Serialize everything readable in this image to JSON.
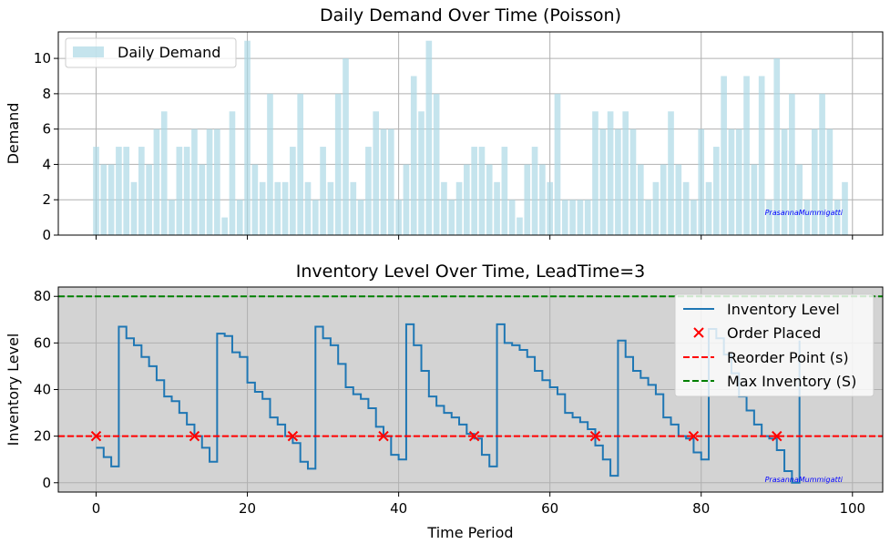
{
  "chart_data": [
    {
      "type": "bar",
      "title": "Daily Demand Over Time (Poisson)",
      "xlabel": "",
      "ylabel": "Demand",
      "xlim": [
        -5,
        104
      ],
      "ylim": [
        0,
        11.5
      ],
      "xticks": [
        0,
        20,
        40,
        60,
        80,
        100
      ],
      "yticks": [
        0,
        2,
        4,
        6,
        8,
        10
      ],
      "grid": true,
      "legend_position": "top-left",
      "watermark": "PrasannaMummigatti",
      "series": [
        {
          "name": "Daily Demand",
          "color": "#add8e6",
          "x": [
            0,
            1,
            2,
            3,
            4,
            5,
            6,
            7,
            8,
            9,
            10,
            11,
            12,
            13,
            14,
            15,
            16,
            17,
            18,
            19,
            20,
            21,
            22,
            23,
            24,
            25,
            26,
            27,
            28,
            29,
            30,
            31,
            32,
            33,
            34,
            35,
            36,
            37,
            38,
            39,
            40,
            41,
            42,
            43,
            44,
            45,
            46,
            47,
            48,
            49,
            50,
            51,
            52,
            53,
            54,
            55,
            56,
            57,
            58,
            59,
            60,
            61,
            62,
            63,
            64,
            65,
            66,
            67,
            68,
            69,
            70,
            71,
            72,
            73,
            74,
            75,
            76,
            77,
            78,
            79,
            80,
            81,
            82,
            83,
            84,
            85,
            86,
            87,
            88,
            89,
            90,
            91,
            92,
            93,
            94,
            95,
            96,
            97,
            98,
            99
          ],
          "values": [
            5,
            4,
            4,
            5,
            5,
            3,
            5,
            4,
            6,
            7,
            2,
            5,
            5,
            6,
            4,
            6,
            6,
            1,
            7,
            2,
            11,
            4,
            3,
            8,
            3,
            3,
            5,
            8,
            3,
            2,
            5,
            3,
            8,
            10,
            3,
            2,
            5,
            7,
            6,
            6,
            2,
            4,
            9,
            7,
            11,
            8,
            3,
            2,
            3,
            4,
            5,
            5,
            4,
            3,
            5,
            2,
            1,
            4,
            5,
            4,
            3,
            8,
            2,
            2,
            2,
            2,
            7,
            6,
            7,
            6,
            7,
            6,
            4,
            2,
            3,
            4,
            7,
            4,
            3,
            2,
            6,
            3,
            5,
            9,
            6,
            6,
            9,
            4,
            9,
            2,
            10,
            6,
            8,
            4,
            2,
            6,
            8,
            6,
            2,
            3
          ]
        }
      ]
    },
    {
      "type": "line",
      "title": "Inventory Level Over Time, LeadTime=3",
      "xlabel": "Time Period",
      "ylabel": "Inventory Level",
      "xlim": [
        -5,
        104
      ],
      "ylim": [
        -4,
        84
      ],
      "xticks": [
        0,
        20,
        40,
        60,
        80,
        100
      ],
      "yticks": [
        0,
        20,
        40,
        60,
        80
      ],
      "grid": true,
      "background": "#d3d3d3",
      "legend_position": "top-right",
      "watermark": "PrasannaMummigatti",
      "series": [
        {
          "name": "Inventory Level",
          "style": "steps-post",
          "color": "#1f77b4",
          "x": [
            0,
            1,
            2,
            3,
            4,
            5,
            6,
            7,
            8,
            9,
            10,
            11,
            12,
            13,
            14,
            15,
            16,
            17,
            18,
            19,
            20,
            21,
            22,
            23,
            24,
            25,
            26,
            27,
            28,
            29,
            30,
            31,
            32,
            33,
            34,
            35,
            36,
            37,
            38,
            39,
            40,
            41,
            42,
            43,
            44,
            45,
            46,
            47,
            48,
            49,
            50,
            51,
            52,
            53,
            54,
            55,
            56,
            57,
            58,
            59,
            60,
            61,
            62,
            63,
            64,
            65,
            66,
            67,
            68,
            69,
            70,
            71,
            72,
            73,
            74,
            75,
            76,
            77,
            78,
            79,
            80,
            81,
            82,
            83,
            84,
            85,
            86,
            87,
            88,
            89,
            90,
            91,
            92,
            93
          ],
          "values": [
            15,
            11,
            7,
            67,
            62,
            59,
            54,
            50,
            44,
            37,
            35,
            30,
            25,
            20,
            15,
            9,
            64,
            63,
            56,
            54,
            43,
            39,
            36,
            28,
            25,
            20,
            17,
            9,
            6,
            67,
            62,
            59,
            51,
            41,
            38,
            36,
            32,
            24,
            20,
            12,
            10,
            68,
            59,
            48,
            37,
            33,
            30,
            28,
            25,
            21,
            19,
            12,
            7,
            68,
            60,
            59,
            57,
            54,
            48,
            44,
            41,
            38,
            30,
            28,
            26,
            23,
            16,
            10,
            3,
            61,
            54,
            48,
            45,
            42,
            38,
            28,
            25,
            20,
            19,
            13,
            10,
            66,
            62,
            55,
            47,
            37,
            31,
            25,
            20,
            19,
            14,
            5,
            0,
            61
          ]
        },
        {
          "name": "Order Placed",
          "style": "markers-x",
          "color": "#ff0000",
          "x": [
            0,
            13,
            26,
            38,
            50,
            66,
            79,
            90
          ],
          "values": [
            20,
            20,
            20,
            20,
            20,
            20,
            20,
            20
          ]
        },
        {
          "name": "Reorder Point (s)",
          "style": "hline-dashed",
          "color": "#ff0000",
          "value": 20
        },
        {
          "name": "Max Inventory (S)",
          "style": "hline-dashed",
          "color": "#008000",
          "value": 80
        }
      ]
    }
  ]
}
